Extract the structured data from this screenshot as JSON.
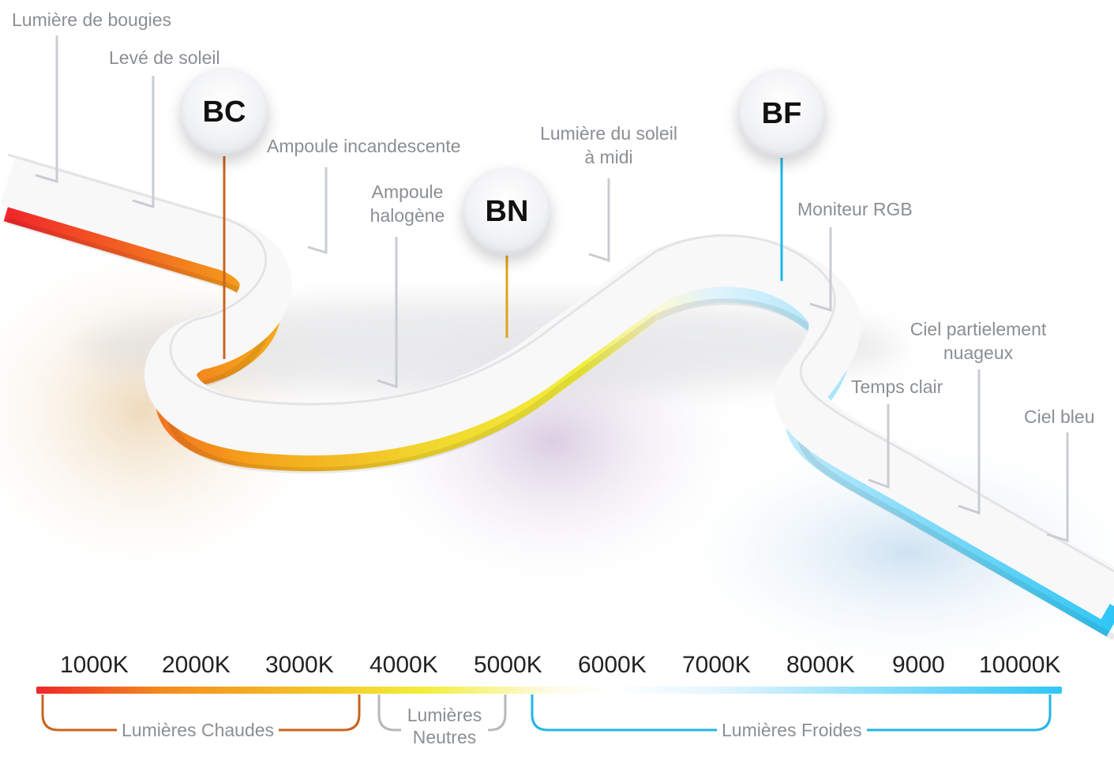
{
  "labels": {
    "candle": "Lumière de bougies",
    "sunrise": "Levé de soleil",
    "incandescent": "Ampoule incandescente",
    "halogen_1": "Ampoule",
    "halogen_2": "halogène",
    "noon_1": "Lumière du soleil",
    "noon_2": "à midi",
    "rgb_monitor": "Moniteur RGB",
    "partly_cloudy_1": "Ciel partielement",
    "partly_cloudy_2": "nuageux",
    "clear_weather": "Temps clair",
    "blue_sky": "Ciel bleu"
  },
  "badges": {
    "warm": "BC",
    "neutral": "BN",
    "cold": "BF"
  },
  "scale": {
    "ticks": [
      "1000K",
      "2000K",
      "3000K",
      "4000K",
      "5000K",
      "6000K",
      "7000K",
      "8000K",
      "9000",
      "10000K"
    ]
  },
  "ranges": {
    "warm": "Lumières Chaudes",
    "neutral_1": "Lumières",
    "neutral_2": "Neutres",
    "cold": "Lumières Froides"
  },
  "colors": {
    "red": "#f0262a",
    "orange": "#f5a21a",
    "yellow": "#f2ee3c",
    "cream": "#fbf8d8",
    "light_blue": "#dff3fc",
    "cyan": "#2ec6f6",
    "warm_bracket": "#c8641e",
    "neutral_bracket": "#b8b8b8",
    "cold_bracket": "#1fb7e8"
  }
}
